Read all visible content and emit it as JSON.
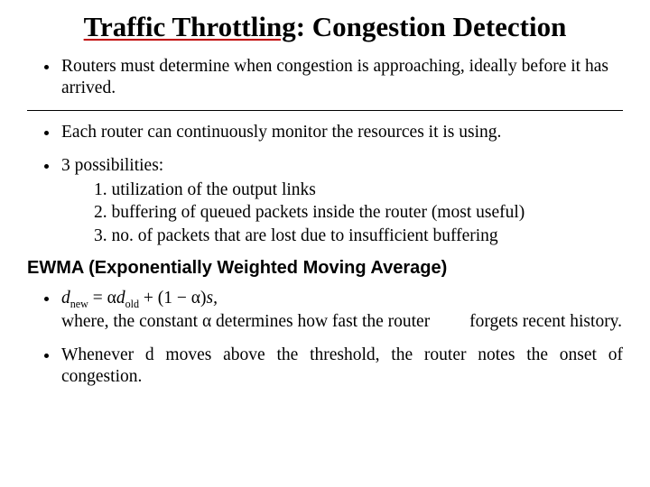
{
  "title_part1": "Traffic Throttling",
  "title_part2": ": Congestion Detection",
  "bullets": {
    "b1": "Routers must determine when congestion is approaching, ideally before it has arrived.",
    "b2": "Each router can continuously monitor the resources it is using.",
    "b3_intro": "3 possibilities:",
    "b3_1": "1. utilization of the output links",
    "b3_2": "2. buffering of queued packets inside the router (most useful)",
    "b3_3": "3. no. of packets that are lost due to insufficient buffering"
  },
  "section_heading": "EWMA (Exponentially Weighted Moving Average)",
  "formula": {
    "lhs_var": "d",
    "lhs_sub": "new",
    "eq": " = α",
    "rhs1_var": "d",
    "rhs1_sub": "old",
    "rhs2": " + (1 − α)",
    "s_var": "s,",
    "desc_pre": "where, the constant α determines how fast the router",
    "desc_gap": "forgets",
    "desc_post": "recent history."
  },
  "last_bullet": "Whenever d moves above the threshold, the router notes the onset of congestion.",
  "colors": {
    "underline": "#c00000",
    "text": "#000000",
    "background": "#ffffff"
  }
}
